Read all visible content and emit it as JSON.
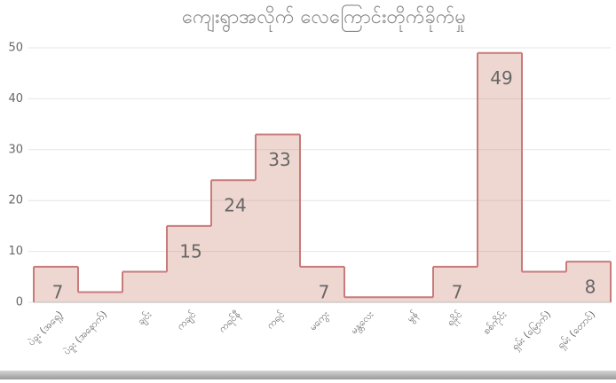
{
  "chart_data": {
    "type": "step-area",
    "title": "ကျေးရွာအလိုက် လေကြောင်းတိုက်ခိုက်မှု",
    "categories": [
      "ပဲခူး (အရှေ့)",
      "ပဲခူး (အနောက်)",
      "ချင်း",
      "ကချင်",
      "ကရင်နီ",
      "ကရင်",
      "မကွေး",
      "မန္တလေး",
      "မွန်",
      "ရခိုင်",
      "စစ်ကိုင်း",
      "ရှမ်း (မြောက်)",
      "ရှမ်း (တောင်)"
    ],
    "values": [
      7,
      2,
      6,
      15,
      24,
      33,
      7,
      1,
      1,
      7,
      49,
      6,
      8
    ],
    "value_labels": [
      "7",
      null,
      null,
      "15",
      "24",
      "33",
      "7",
      null,
      null,
      "7",
      "49",
      null,
      "8"
    ],
    "color": "#c97a7a",
    "fill": "rgba(214,150,135,0.38)",
    "ylim": [
      0,
      50
    ],
    "yticks": [
      0,
      10,
      20,
      30,
      40,
      50
    ],
    "grid": true
  }
}
